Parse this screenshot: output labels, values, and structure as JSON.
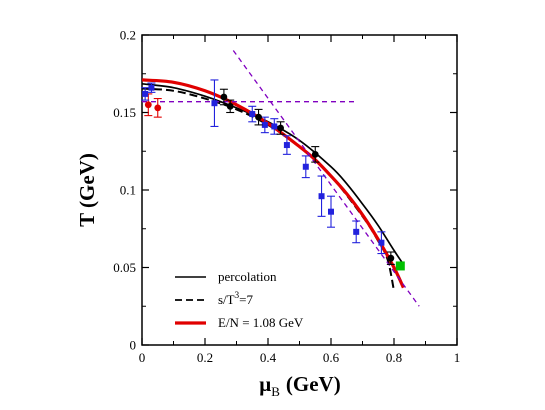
{
  "chart_data": {
    "type": "line",
    "xlabel": {
      "symbol": "μ",
      "subscript": "B",
      "unit": "(GeV)"
    },
    "ylabel": "T (GeV)",
    "xlim": [
      0,
      1
    ],
    "ylim": [
      0,
      0.2
    ],
    "x_ticks": [
      "0",
      "0.2",
      "0.4",
      "0.6",
      "0.8",
      "1"
    ],
    "y_ticks": [
      "0",
      "0.05",
      "0.1",
      "0.15",
      "0.2"
    ],
    "grid": false,
    "legend_position": "bottom-left",
    "legend": [
      {
        "label": "percolation",
        "style": "solid",
        "color": "#000000"
      },
      {
        "label_main": "s/T",
        "label_sup": "3",
        "label_tail": "=7",
        "style": "dashed",
        "color": "#000000"
      },
      {
        "label": "E/N = 1.08 GeV",
        "style": "solid-thick",
        "color": "#e00000"
      }
    ],
    "series": [
      {
        "style": "solid",
        "color": "#000000",
        "x": [
          0,
          0.1,
          0.2,
          0.3,
          0.4,
          0.5,
          0.6,
          0.65,
          0.7,
          0.75,
          0.8,
          0.83
        ],
        "y": [
          0.1685,
          0.166,
          0.1605,
          0.153,
          0.144,
          0.132,
          0.115,
          0.104,
          0.091,
          0.077,
          0.061,
          0.052
        ]
      },
      {
        "style": "dashed",
        "color": "#000000",
        "x": [
          0,
          0.1,
          0.2,
          0.3,
          0.4,
          0.5,
          0.6,
          0.7,
          0.75,
          0.78,
          0.8
        ],
        "y": [
          0.1655,
          0.164,
          0.159,
          0.152,
          0.142,
          0.128,
          0.109,
          0.083,
          0.067,
          0.055,
          0.035
        ]
      },
      {
        "style": "solid-thick",
        "color": "#e00000",
        "x": [
          0,
          0.1,
          0.2,
          0.3,
          0.4,
          0.5,
          0.55,
          0.6,
          0.65,
          0.7,
          0.75,
          0.8,
          0.83
        ],
        "y": [
          0.171,
          0.1695,
          0.164,
          0.155,
          0.143,
          0.128,
          0.1195,
          0.109,
          0.0975,
          0.084,
          0.068,
          0.05,
          0.037
        ]
      },
      {
        "style": "dashed",
        "color": "#8000c0",
        "x": [
          0,
          0.68
        ],
        "y": [
          0.157,
          0.157
        ]
      },
      {
        "style": "dashed",
        "color": "#8000c0",
        "x": [
          0.29,
          0.88
        ],
        "y": [
          0.19,
          0.025
        ]
      }
    ],
    "points": [
      {
        "color": "#e00000",
        "marker": "circle",
        "x": 0.02,
        "y": 0.155,
        "err": 0.007
      },
      {
        "color": "#e00000",
        "marker": "circle",
        "x": 0.05,
        "y": 0.153,
        "err": 0.006
      },
      {
        "color": "#2222dd",
        "marker": "square",
        "x": 0.01,
        "y": 0.162,
        "err": 0.004
      },
      {
        "color": "#2222dd",
        "marker": "square",
        "x": 0.03,
        "y": 0.166,
        "err": 0.003
      },
      {
        "color": "#2222dd",
        "marker": "square",
        "x": 0.23,
        "y": 0.156,
        "err": 0.015
      },
      {
        "color": "#2222dd",
        "marker": "square",
        "x": 0.35,
        "y": 0.149,
        "err": 0.005
      },
      {
        "color": "#2222dd",
        "marker": "square",
        "x": 0.39,
        "y": 0.142,
        "err": 0.005
      },
      {
        "color": "#2222dd",
        "marker": "square",
        "x": 0.42,
        "y": 0.141,
        "err": 0.005
      },
      {
        "color": "#2222dd",
        "marker": "square",
        "x": 0.46,
        "y": 0.129,
        "err": 0.006
      },
      {
        "color": "#2222dd",
        "marker": "square",
        "x": 0.52,
        "y": 0.115,
        "err": 0.007
      },
      {
        "color": "#2222dd",
        "marker": "square",
        "x": 0.57,
        "y": 0.096,
        "err": 0.013
      },
      {
        "color": "#2222dd",
        "marker": "square",
        "x": 0.6,
        "y": 0.086,
        "err": 0.01
      },
      {
        "color": "#2222dd",
        "marker": "square",
        "x": 0.68,
        "y": 0.073,
        "err": 0.007
      },
      {
        "color": "#2222dd",
        "marker": "square",
        "x": 0.76,
        "y": 0.066,
        "err": 0.007
      },
      {
        "color": "#000000",
        "marker": "circle",
        "x": 0.26,
        "y": 0.16,
        "err": 0.005
      },
      {
        "color": "#000000",
        "marker": "circle",
        "x": 0.28,
        "y": 0.154,
        "err": 0.004
      },
      {
        "color": "#000000",
        "marker": "circle",
        "x": 0.37,
        "y": 0.147,
        "err": 0.005
      },
      {
        "color": "#000000",
        "marker": "circle",
        "x": 0.44,
        "y": 0.14,
        "err": 0.004
      },
      {
        "color": "#000000",
        "marker": "circle",
        "x": 0.55,
        "y": 0.123,
        "err": 0.005
      },
      {
        "color": "#000000",
        "marker": "circle",
        "x": 0.79,
        "y": 0.056,
        "err": 0.004
      },
      {
        "color": "#00c000",
        "marker": "square",
        "x": 0.82,
        "y": 0.051,
        "err": 0
      }
    ]
  }
}
